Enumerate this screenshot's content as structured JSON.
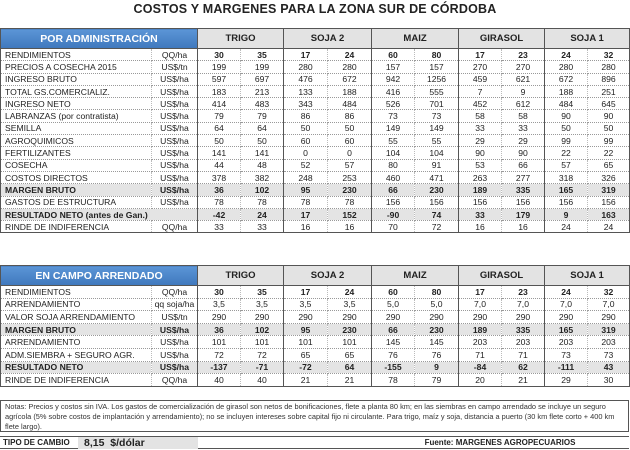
{
  "title": "COSTOS Y MARGENES PARA LA ZONA SUR DE CÓRDOBA",
  "crops": [
    "TRIGO",
    "SOJA 2",
    "MAIZ",
    "GIRASOL",
    "SOJA 1"
  ],
  "table1": {
    "section": "POR ADMINISTRACIÓN",
    "rows": [
      {
        "label": "RENDIMIENTOS",
        "unit": "QQ/ha",
        "values": [
          "30",
          "35",
          "17",
          "24",
          "60",
          "80",
          "17",
          "23",
          "24",
          "32"
        ],
        "first": true
      },
      {
        "label": "PRECIOS A COSECHA 2015",
        "unit": "US$/tn",
        "values": [
          "199",
          "199",
          "280",
          "280",
          "157",
          "157",
          "270",
          "270",
          "280",
          "280"
        ]
      },
      {
        "label": "INGRESO BRUTO",
        "unit": "US$/ha",
        "values": [
          "597",
          "697",
          "476",
          "672",
          "942",
          "1256",
          "459",
          "621",
          "672",
          "896"
        ]
      },
      {
        "label": "TOTAL GS.COMERCIALIZ.",
        "unit": "US$/ha",
        "values": [
          "183",
          "213",
          "133",
          "188",
          "416",
          "555",
          "7",
          "9",
          "188",
          "251"
        ]
      },
      {
        "label": "INGRESO NETO",
        "unit": "US$/ha",
        "values": [
          "414",
          "483",
          "343",
          "484",
          "526",
          "701",
          "452",
          "612",
          "484",
          "645"
        ]
      },
      {
        "label": "LABRANZAS (por contratista)",
        "unit": "US$/ha",
        "values": [
          "79",
          "79",
          "86",
          "86",
          "73",
          "73",
          "58",
          "58",
          "90",
          "90"
        ]
      },
      {
        "label": "SEMILLA",
        "unit": "US$/ha",
        "values": [
          "64",
          "64",
          "50",
          "50",
          "149",
          "149",
          "33",
          "33",
          "50",
          "50"
        ]
      },
      {
        "label": "AGROQUIMICOS",
        "unit": "US$/ha",
        "values": [
          "50",
          "50",
          "60",
          "60",
          "55",
          "55",
          "29",
          "29",
          "99",
          "99"
        ]
      },
      {
        "label": "FERTILIZANTES",
        "unit": "US$/ha",
        "values": [
          "141",
          "141",
          "0",
          "0",
          "104",
          "104",
          "90",
          "90",
          "22",
          "22"
        ]
      },
      {
        "label": "COSECHA",
        "unit": "US$/ha",
        "values": [
          "44",
          "48",
          "52",
          "57",
          "80",
          "91",
          "53",
          "66",
          "57",
          "65"
        ]
      },
      {
        "label": "COSTOS DIRECTOS",
        "unit": "US$/ha",
        "values": [
          "378",
          "382",
          "248",
          "253",
          "460",
          "471",
          "263",
          "277",
          "318",
          "326"
        ]
      },
      {
        "label": "MARGEN BRUTO",
        "unit": "US$/ha",
        "values": [
          "36",
          "102",
          "95",
          "230",
          "66",
          "230",
          "189",
          "335",
          "165",
          "319"
        ],
        "shade": true
      },
      {
        "label": "GASTOS DE ESTRUCTURA",
        "unit": "US$/ha",
        "values": [
          "78",
          "78",
          "78",
          "78",
          "156",
          "156",
          "156",
          "156",
          "156",
          "156"
        ]
      },
      {
        "label": "RESULTADO NETO (antes de Gan.)",
        "unit": "",
        "values": [
          "-42",
          "24",
          "17",
          "152",
          "-90",
          "74",
          "33",
          "179",
          "9",
          "163"
        ],
        "shade": true,
        "span": true
      },
      {
        "label": "RINDE DE INDIFERENCIA",
        "unit": "QQ/ha",
        "values": [
          "33",
          "33",
          "16",
          "16",
          "70",
          "72",
          "16",
          "16",
          "24",
          "24"
        ]
      }
    ]
  },
  "table2": {
    "section": "EN CAMPO ARRENDADO",
    "rows": [
      {
        "label": "RENDIMIENTOS",
        "unit": "QQ/ha",
        "values": [
          "30",
          "35",
          "17",
          "24",
          "60",
          "80",
          "17",
          "23",
          "24",
          "32"
        ],
        "first": true
      },
      {
        "label": "ARRENDAMIENTO",
        "unit": "qq soja/ha",
        "values": [
          "3,5",
          "3,5",
          "3,5",
          "3,5",
          "5,0",
          "5,0",
          "7,0",
          "7,0",
          "7,0",
          "7,0"
        ]
      },
      {
        "label": "VALOR SOJA ARRENDAMIENTO",
        "unit": "US$/tn",
        "values": [
          "290",
          "290",
          "290",
          "290",
          "290",
          "290",
          "290",
          "290",
          "290",
          "290"
        ]
      },
      {
        "label": "MARGEN BRUTO",
        "unit": "US$/ha",
        "values": [
          "36",
          "102",
          "95",
          "230",
          "66",
          "230",
          "189",
          "335",
          "165",
          "319"
        ],
        "shade": true
      },
      {
        "label": "ARRENDAMIENTO",
        "unit": "US$/ha",
        "values": [
          "101",
          "101",
          "101",
          "101",
          "145",
          "145",
          "203",
          "203",
          "203",
          "203"
        ]
      },
      {
        "label": "ADM.SIEMBRA + SEGURO AGR.",
        "unit": "US$/ha",
        "values": [
          "72",
          "72",
          "65",
          "65",
          "76",
          "76",
          "71",
          "71",
          "73",
          "73"
        ]
      },
      {
        "label": "RESULTADO NETO",
        "unit": "US$/ha",
        "values": [
          "-137",
          "-71",
          "-72",
          "64",
          "-155",
          "9",
          "-84",
          "62",
          "-111",
          "43"
        ],
        "shade": true
      },
      {
        "label": "RINDE DE INDIFERENCIA",
        "unit": "QQ/ha",
        "values": [
          "40",
          "40",
          "21",
          "21",
          "78",
          "79",
          "20",
          "21",
          "29",
          "30"
        ]
      }
    ]
  },
  "notes": "Notas: Precios y costos sin IVA. Los gastos de comercialización de girasol son netos de bonificaciones, flete a planta 80 km; en las siembras en campo arrendado se incluye un seguro agrícola (5% sobre costos de implantación y arrendamiento); no se incluyen intereses sobre capital fijo ni circulante. Para trigo, maíz y soja, distancia a puerto (30 km flete corto + 400 km flete largo).",
  "footer": {
    "label": "TIPO DE CAMBIO",
    "rate": "8,15",
    "rate_unit": "$/dólar",
    "source": "Fuente: MARGENES AGROPECUARIOS"
  }
}
